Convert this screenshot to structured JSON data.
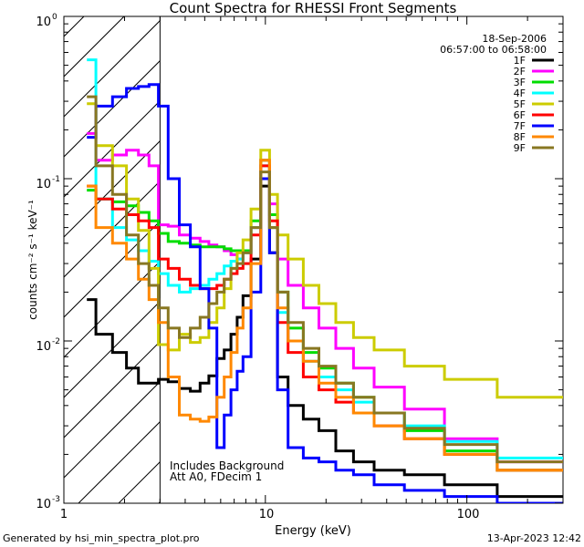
{
  "chart_data": {
    "type": "line",
    "title": "Count Spectra for RHESSI Front Segments",
    "xlabel": "Energy (keV)",
    "ylabel": "counts cm⁻² s⁻¹ keV⁻¹",
    "xscale": "log",
    "yscale": "log",
    "xlim": [
      1,
      300
    ],
    "ylim": [
      0.001,
      1
    ],
    "x_ticks": [
      {
        "value": 1,
        "label": "1"
      },
      {
        "value": 10,
        "label": "10"
      },
      {
        "value": 100,
        "label": "100"
      }
    ],
    "y_ticks": [
      {
        "value": 1,
        "base": "10",
        "exp": "0"
      },
      {
        "value": 0.1,
        "base": "10",
        "exp": "-1"
      },
      {
        "value": 0.01,
        "base": "10",
        "exp": "-2"
      },
      {
        "value": 0.001,
        "base": "10",
        "exp": "-3"
      }
    ],
    "date": "18-Sep-2006",
    "time_range": "06:57:00 to 06:58:00",
    "annotation_lines": [
      "Includes Background",
      "Att A0, FDecim 1"
    ],
    "excluded_region_max_keV": 3.0,
    "legend_position": "top-right",
    "series": [
      {
        "name": "1F",
        "color": "#000000",
        "x": [
          1.3,
          1.6,
          1.9,
          2.2,
          2.5,
          2.8,
          3.1,
          3.5,
          4,
          4.5,
          5,
          5.5,
          6,
          6.5,
          7,
          7.5,
          8,
          9,
          10,
          11,
          12,
          14,
          17,
          20,
          25,
          30,
          40,
          60,
          100,
          200
        ],
        "values": [
          0.018,
          0.011,
          0.0085,
          0.0068,
          0.0055,
          0.0055,
          0.0058,
          0.0056,
          0.0051,
          0.0049,
          0.0055,
          0.0061,
          0.0078,
          0.0088,
          0.011,
          0.014,
          0.019,
          0.032,
          0.09,
          0.035,
          0.006,
          0.004,
          0.0033,
          0.0028,
          0.0021,
          0.0018,
          0.0016,
          0.0015,
          0.0013,
          0.0011
        ]
      },
      {
        "name": "2F",
        "color": "#ff00ff",
        "x": [
          1.3,
          1.6,
          1.9,
          2.2,
          2.5,
          2.8,
          3.1,
          3.5,
          4,
          4.5,
          5,
          5.5,
          6,
          6.5,
          7,
          7.5,
          8,
          9,
          10,
          11,
          12,
          14,
          17,
          20,
          25,
          30,
          40,
          60,
          100,
          200
        ],
        "values": [
          0.19,
          0.13,
          0.14,
          0.15,
          0.14,
          0.12,
          0.052,
          0.051,
          0.045,
          0.043,
          0.041,
          0.039,
          0.038,
          0.036,
          0.034,
          0.032,
          0.035,
          0.05,
          0.13,
          0.07,
          0.032,
          0.022,
          0.016,
          0.012,
          0.009,
          0.0068,
          0.0052,
          0.0038,
          0.0025,
          0.0018
        ]
      },
      {
        "name": "3F",
        "color": "#00dd00",
        "x": [
          1.3,
          1.6,
          1.9,
          2.2,
          2.5,
          2.8,
          3.1,
          3.5,
          4,
          4.5,
          5,
          5.5,
          6,
          6.5,
          7,
          7.5,
          8,
          9,
          10,
          11,
          12,
          14,
          17,
          20,
          25,
          30,
          40,
          60,
          100,
          200
        ],
        "values": [
          0.085,
          0.075,
          0.072,
          0.068,
          0.062,
          0.055,
          0.046,
          0.041,
          0.04,
          0.039,
          0.038,
          0.038,
          0.038,
          0.037,
          0.036,
          0.036,
          0.036,
          0.055,
          0.13,
          0.06,
          0.02,
          0.012,
          0.0085,
          0.0068,
          0.0055,
          0.0045,
          0.0036,
          0.0028,
          0.0021,
          0.0016
        ]
      },
      {
        "name": "4F",
        "color": "#00ffff",
        "x": [
          1.3,
          1.6,
          1.9,
          2.2,
          2.5,
          2.8,
          3.1,
          3.5,
          4,
          4.5,
          5,
          5.5,
          6,
          6.5,
          7,
          7.5,
          8,
          9,
          10,
          11,
          12,
          14,
          17,
          20,
          25,
          30,
          40,
          60,
          100,
          200
        ],
        "values": [
          0.54,
          0.075,
          0.05,
          0.042,
          0.036,
          0.031,
          0.026,
          0.022,
          0.02,
          0.021,
          0.022,
          0.024,
          0.026,
          0.029,
          0.031,
          0.032,
          0.035,
          0.05,
          0.12,
          0.05,
          0.015,
          0.01,
          0.0075,
          0.006,
          0.005,
          0.0042,
          0.0036,
          0.003,
          0.0024,
          0.0019
        ]
      },
      {
        "name": "5F",
        "color": "#cccc00",
        "x": [
          1.3,
          1.6,
          1.9,
          2.2,
          2.5,
          2.8,
          3.1,
          3.5,
          4,
          4.5,
          5,
          5.5,
          6,
          6.5,
          7,
          7.5,
          8,
          9,
          10,
          11,
          12,
          14,
          17,
          20,
          25,
          30,
          40,
          60,
          100,
          200
        ],
        "values": [
          0.29,
          0.16,
          0.12,
          0.075,
          0.048,
          0.028,
          0.0095,
          0.0088,
          0.011,
          0.0098,
          0.0105,
          0.013,
          0.016,
          0.021,
          0.028,
          0.035,
          0.042,
          0.065,
          0.15,
          0.08,
          0.045,
          0.032,
          0.022,
          0.017,
          0.013,
          0.0105,
          0.0088,
          0.007,
          0.0058,
          0.0045
        ]
      },
      {
        "name": "6F",
        "color": "#ff0000",
        "x": [
          1.3,
          1.6,
          1.9,
          2.2,
          2.5,
          2.8,
          3.1,
          3.5,
          4,
          4.5,
          5,
          5.5,
          6,
          6.5,
          7,
          7.5,
          8,
          9,
          10,
          11,
          12,
          14,
          17,
          20,
          25,
          30,
          40,
          60,
          100,
          200
        ],
        "values": [
          0.09,
          0.075,
          0.065,
          0.06,
          0.055,
          0.05,
          0.032,
          0.028,
          0.024,
          0.022,
          0.021,
          0.021,
          0.022,
          0.024,
          0.026,
          0.028,
          0.03,
          0.045,
          0.12,
          0.055,
          0.013,
          0.0085,
          0.006,
          0.005,
          0.0042,
          0.0036,
          0.003,
          0.0025,
          0.002,
          0.0016
        ]
      },
      {
        "name": "7F",
        "color": "#0000ff",
        "x": [
          1.3,
          1.6,
          1.9,
          2.2,
          2.5,
          2.8,
          3.1,
          3.5,
          4,
          4.5,
          5,
          5.5,
          6,
          6.5,
          7,
          7.5,
          8,
          9,
          10,
          11,
          12,
          14,
          17,
          20,
          25,
          30,
          40,
          60,
          100,
          200
        ],
        "values": [
          0.18,
          0.28,
          0.32,
          0.36,
          0.37,
          0.38,
          0.28,
          0.1,
          0.052,
          0.038,
          0.021,
          0.012,
          0.0022,
          0.0035,
          0.005,
          0.0065,
          0.008,
          0.02,
          0.1,
          0.035,
          0.005,
          0.0022,
          0.0019,
          0.0018,
          0.0016,
          0.0015,
          0.0013,
          0.0012,
          0.0011,
          0.001
        ]
      },
      {
        "name": "8F",
        "color": "#ff8800",
        "x": [
          1.3,
          1.6,
          1.9,
          2.2,
          2.5,
          2.8,
          3.1,
          3.5,
          4,
          4.5,
          5,
          5.5,
          6,
          6.5,
          7,
          7.5,
          8,
          9,
          10,
          11,
          12,
          14,
          17,
          20,
          25,
          30,
          40,
          60,
          100,
          200
        ],
        "values": [
          0.09,
          0.05,
          0.04,
          0.032,
          0.024,
          0.018,
          0.013,
          0.006,
          0.0035,
          0.0033,
          0.0032,
          0.0034,
          0.0045,
          0.006,
          0.0085,
          0.012,
          0.016,
          0.03,
          0.13,
          0.05,
          0.016,
          0.01,
          0.0075,
          0.0055,
          0.0045,
          0.0036,
          0.003,
          0.0025,
          0.002,
          0.0016
        ]
      },
      {
        "name": "9F",
        "color": "#887722",
        "x": [
          1.3,
          1.6,
          1.9,
          2.2,
          2.5,
          2.8,
          3.1,
          3.5,
          4,
          4.5,
          5,
          5.5,
          6,
          6.5,
          7,
          7.5,
          8,
          9,
          10,
          11,
          12,
          14,
          17,
          20,
          25,
          30,
          40,
          60,
          100,
          200
        ],
        "values": [
          0.32,
          0.12,
          0.08,
          0.045,
          0.03,
          0.022,
          0.016,
          0.012,
          0.0105,
          0.012,
          0.014,
          0.017,
          0.02,
          0.024,
          0.028,
          0.03,
          0.035,
          0.05,
          0.11,
          0.05,
          0.02,
          0.013,
          0.009,
          0.007,
          0.0055,
          0.0045,
          0.0036,
          0.0029,
          0.0023,
          0.0018
        ]
      }
    ]
  },
  "footer": {
    "generated_by": "Generated by hsi_min_spectra_plot.pro",
    "timestamp": "13-Apr-2023 12:42"
  }
}
